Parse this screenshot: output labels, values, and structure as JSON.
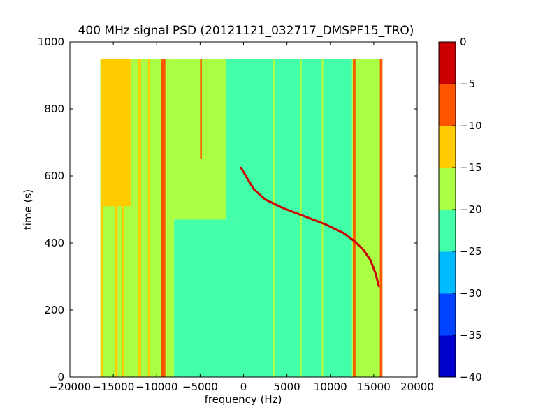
{
  "chart_data": {
    "type": "heatmap",
    "title": "400 MHz signal PSD (20121121_032717_DMSPF15_TRO)",
    "xlabel": "frequency (Hz)",
    "ylabel": "time (s)",
    "xlim": [
      -20000,
      20000
    ],
    "ylim": [
      0,
      1000
    ],
    "xticks": [
      -20000,
      -15000,
      -10000,
      -5000,
      0,
      5000,
      10000,
      15000,
      20000
    ],
    "xtick_labels": [
      "−20000",
      "−15000",
      "−10000",
      "−5000",
      "0",
      "5000",
      "10000",
      "15000",
      "20000"
    ],
    "yticks": [
      0,
      200,
      400,
      600,
      800,
      1000
    ],
    "ytick_labels": [
      "0",
      "200",
      "400",
      "600",
      "800",
      "1000"
    ],
    "data_extent": {
      "freq": [
        -16500,
        16000
      ],
      "time": [
        0,
        950
      ]
    },
    "colorbar": {
      "range": [
        -40,
        0
      ],
      "levels": [
        -40,
        -35,
        -30,
        -25,
        -20,
        -15,
        -10,
        -5,
        0
      ],
      "tick_labels": [
        "−40",
        "−35",
        "−30",
        "−25",
        "−20",
        "−15",
        "−10",
        "−5",
        "0"
      ],
      "colors": [
        "#0000cc",
        "#0044ff",
        "#00bbff",
        "#44ffaa",
        "#aaff44",
        "#ffcc00",
        "#ff5500",
        "#cc0000"
      ]
    },
    "regions": [
      {
        "freq": [
          -16500,
          -8000
        ],
        "time": [
          0,
          950
        ],
        "level": -17.5
      },
      {
        "freq": [
          -8000,
          0
        ],
        "time": [
          0,
          470
        ],
        "level": -22.5
      },
      {
        "freq": [
          -8000,
          -2000
        ],
        "time": [
          470,
          950
        ],
        "level": -17.5
      },
      {
        "freq": [
          -2000,
          0
        ],
        "time": [
          470,
          950
        ],
        "level": -22.5
      },
      {
        "freq": [
          0,
          12500
        ],
        "time": [
          0,
          950
        ],
        "level": -22.5
      },
      {
        "freq": [
          12500,
          16000
        ],
        "time": [
          0,
          950
        ],
        "level": -17.5
      },
      {
        "freq": [
          -16200,
          -13000
        ],
        "time": [
          510,
          950
        ],
        "level": -12.5
      }
    ],
    "vertical_lines": [
      {
        "freq": [
          -16400,
          -16200
        ],
        "time": [
          0,
          950
        ],
        "level": -12.5
      },
      {
        "freq": [
          -14800,
          -14500
        ],
        "time": [
          0,
          950
        ],
        "level": -12.5
      },
      {
        "freq": [
          -14000,
          -13800
        ],
        "time": [
          0,
          950
        ],
        "level": -12.5
      },
      {
        "freq": [
          -12200,
          -11800
        ],
        "time": [
          0,
          950
        ],
        "level": -12.5
      },
      {
        "freq": [
          -11000,
          -10800
        ],
        "time": [
          0,
          950
        ],
        "level": -12.5
      },
      {
        "freq": [
          -9500,
          -9000
        ],
        "time": [
          0,
          950
        ],
        "level": -7.5
      },
      {
        "freq": [
          -5000,
          -4800
        ],
        "time": [
          650,
          950
        ],
        "level": -7.5
      },
      {
        "freq": [
          3400,
          3600
        ],
        "time": [
          0,
          950
        ],
        "level": -17.5
      },
      {
        "freq": [
          6500,
          6700
        ],
        "time": [
          0,
          950
        ],
        "level": -17.5
      },
      {
        "freq": [
          9000,
          9200
        ],
        "time": [
          0,
          950
        ],
        "level": -17.5
      },
      {
        "freq": [
          12600,
          12900
        ],
        "time": [
          0,
          950
        ],
        "level": -7.5
      },
      {
        "freq": [
          15700,
          16000
        ],
        "time": [
          0,
          950
        ],
        "level": -7.5
      }
    ],
    "doppler_curve": [
      {
        "freq": -300,
        "time": 625
      },
      {
        "freq": 500,
        "time": 590
      },
      {
        "freq": 1200,
        "time": 560
      },
      {
        "freq": 2500,
        "time": 530
      },
      {
        "freq": 4500,
        "time": 505
      },
      {
        "freq": 7000,
        "time": 480
      },
      {
        "freq": 9500,
        "time": 455
      },
      {
        "freq": 11500,
        "time": 430
      },
      {
        "freq": 12800,
        "time": 405
      },
      {
        "freq": 13800,
        "time": 380
      },
      {
        "freq": 14600,
        "time": 350
      },
      {
        "freq": 15200,
        "time": 310
      },
      {
        "freq": 15600,
        "time": 270
      }
    ],
    "curve_level": -2.5
  }
}
